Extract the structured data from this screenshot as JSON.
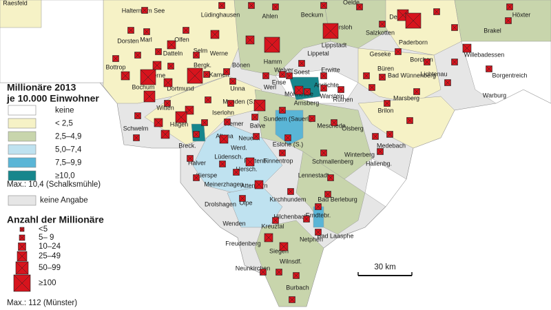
{
  "legend": {
    "title": "Millionäre 2013",
    "subtitle": "je 10.000 Einwohner",
    "classes": [
      {
        "label": "keine",
        "color": "#ffffff"
      },
      {
        "label": "< 2,5",
        "color": "#f6f2c6"
      },
      {
        "label": "2,5–4,9",
        "color": "#c8d5ac"
      },
      {
        "label": "5,0–7,4",
        "color": "#bfe2f0"
      },
      {
        "label": "7,5–9,9",
        "color": "#5ab5d6"
      },
      {
        "label": "≥10,0",
        "color": "#17868c"
      }
    ],
    "max_note": "Max.: 10,4 (Schalksmühle)",
    "no_data": {
      "label": "keine Angabe",
      "color": "#e6e6e6"
    },
    "count_title": "Anzahl der Millionäre",
    "count_classes": [
      "<5",
      "5– 9",
      "10–24",
      "25–49",
      "50–99",
      "≥100"
    ],
    "count_max_note": "Max.: 112 (Münster)",
    "marker_color": "#d7141d"
  },
  "scale_bar": "30 km",
  "places": [
    "Raesfeld",
    "Haltern am See",
    "Lüdinghausen",
    "Ahlen",
    "Beckum",
    "Oelde",
    "Delbrück",
    "Höxter",
    "Dorsten",
    "Olfen",
    "Wadersloh",
    "Salzkotten",
    "Paderborn",
    "Brakel",
    "Marl",
    "Datteln",
    "Selm",
    "Werne",
    "Hamm",
    "Lippetal",
    "Lippstadt",
    "Geseke",
    "Borchen",
    "Bad Wünnenberg",
    "Willebadessen",
    "Bottrop",
    "Herne",
    "Bergk.",
    "Bönen",
    "Welver",
    "Soest",
    "Erwitte",
    "Büren",
    "Lichtenau",
    "Borgentreich",
    "Kamen",
    "Unna",
    "Werl",
    "Anröchte",
    "Rüthen",
    "Warburg",
    "Ense",
    "Möhnesee",
    "Warstein",
    "Dortmund",
    "Bochum",
    "Witten",
    "Hagen",
    "Iserlohn",
    "Menden (S.)",
    "Arnsberg",
    "Meschede",
    "Brilon",
    "Marsberg",
    "Hemer",
    "Balve",
    "Sundern (Sauerl.)",
    "Olsberg",
    "Schwelm",
    "Altena",
    "Neuenr.",
    "Werd.",
    "Eslohe (S.)",
    "Winterberg",
    "Medebach",
    "Breck.",
    "Halver",
    "Lüdensch.",
    "Plettenb.",
    "Finnentrop",
    "Schmallenberg",
    "Hallenbg.",
    "Kierspe",
    "Hersch.",
    "Meinerzhagen",
    "Attendorn",
    "Lennestadt",
    "Drolshagen",
    "Olpe",
    "Kirchhundem",
    "Bad Berleburg",
    "Wenden",
    "Hilchenbach",
    "Erndtebr.",
    "Freudenberg",
    "Kreuztal",
    "Netphen",
    "Bad Laasphe",
    "Siegen",
    "Wilnsdf.",
    "Neunkirchen",
    "Burbach"
  ]
}
